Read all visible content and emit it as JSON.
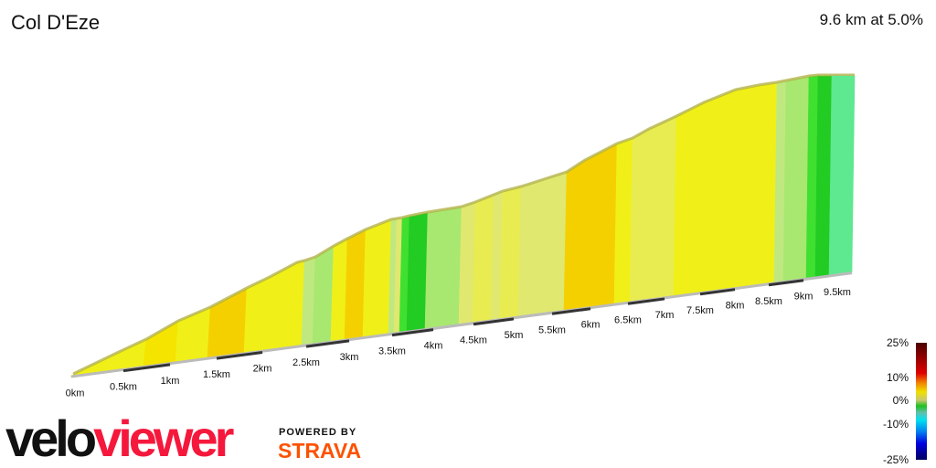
{
  "header": {
    "title": "Col D'Eze",
    "summary": "9.6 km at 5.0%"
  },
  "chart_data": {
    "type": "area",
    "title": "Col D'Eze",
    "x_ticks": [
      "0km",
      "0.5km",
      "1km",
      "1.5km",
      "2km",
      "2.5km",
      "3km",
      "3.5km",
      "4km",
      "4.5km",
      "5km",
      "5.5km",
      "6km",
      "6.5km",
      "7km",
      "7.5km",
      "8km",
      "8.5km",
      "9km",
      "9.5km"
    ],
    "segment_gradients_pct": [
      6,
      6,
      7,
      6,
      8,
      6,
      6,
      6,
      3,
      2,
      6,
      8,
      6,
      3,
      4,
      1,
      0,
      2,
      4,
      5,
      4,
      5,
      4,
      4,
      8,
      8,
      6,
      5,
      5,
      6,
      6,
      6,
      6,
      3,
      2,
      1,
      0,
      -1,
      -1
    ],
    "colorscale": {
      "ticks": [
        "25%",
        "10%",
        "0%",
        "-10%",
        "-25%"
      ],
      "range": [
        -25,
        25
      ]
    }
  },
  "branding": {
    "velo": "velo",
    "viewer": "viewer",
    "powered": "POWERED BY",
    "strava": "STRAVA"
  }
}
